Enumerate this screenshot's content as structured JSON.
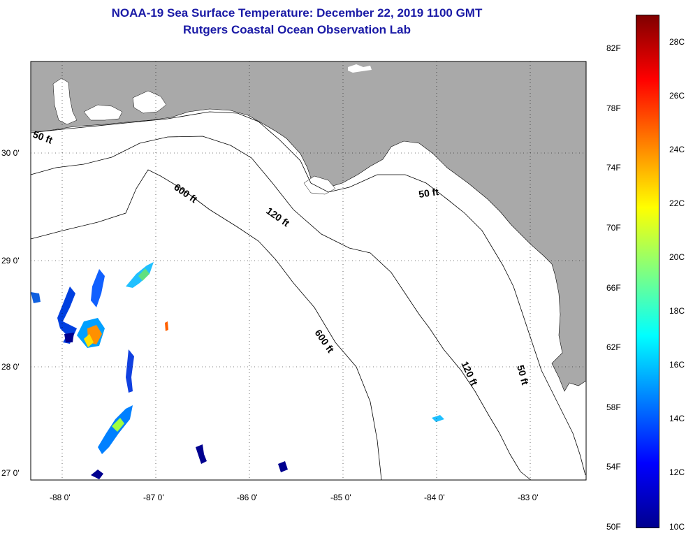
{
  "title": {
    "line1": "NOAA-19 Sea Surface Temperature:  December 22, 2019 1100 GMT",
    "line2": "Rutgers Coastal Ocean Observation Lab"
  },
  "map": {
    "lat_ticks": [
      "30 0'",
      "29 0'",
      "28 0'",
      "27 0'"
    ],
    "lon_ticks": [
      "-88 0'",
      "-87 0'",
      "-86 0'",
      "-85 0'",
      "-84 0'",
      "-83 0'"
    ],
    "contours": {
      "c50_a": "50 ft",
      "c600_a": "600 ft",
      "c120_a": "120 ft",
      "c50_b": "50 ft",
      "c600_b": "600 ft",
      "c120_b": "120 ft",
      "c50_c": "50 ft"
    },
    "land_color": "#a9a9a9"
  },
  "colorbar": {
    "fahrenheit": [
      "82F",
      "78F",
      "74F",
      "70F",
      "66F",
      "62F",
      "58F",
      "54F",
      "50F"
    ],
    "celsius": [
      "28C",
      "26C",
      "24C",
      "22C",
      "20C",
      "18C",
      "16C",
      "14C",
      "12C",
      "10C"
    ],
    "colors": [
      "#00008f",
      "#0000ff",
      "#0080ff",
      "#00ffff",
      "#80ff80",
      "#ffff00",
      "#ff8000",
      "#ff0000",
      "#800000"
    ]
  }
}
